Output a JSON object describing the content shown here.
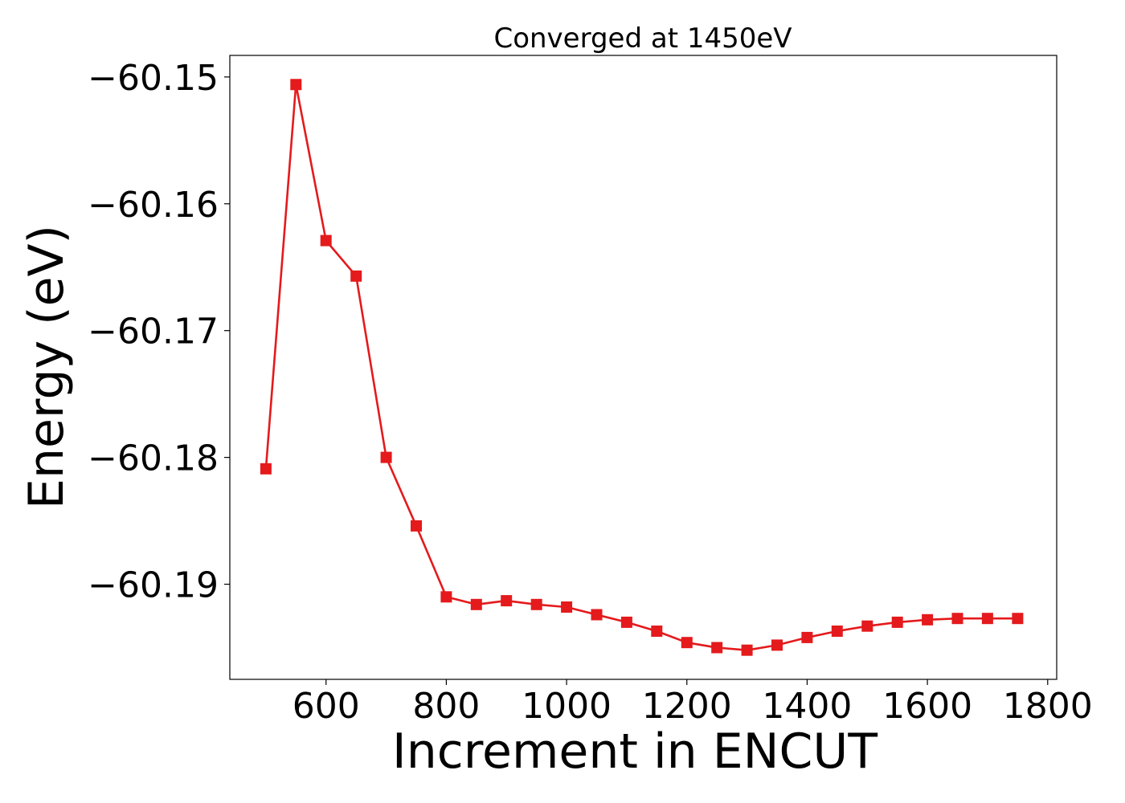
{
  "chart_data": {
    "type": "line",
    "title": "Converged at 1450eV",
    "xlabel": "Increment in ENCUT",
    "ylabel": "Energy (eV)",
    "xlim": [
      440,
      1815
    ],
    "ylim": [
      -60.1975,
      -60.1483
    ],
    "xticks": [
      600,
      800,
      1000,
      1200,
      1400,
      1600,
      1800
    ],
    "yticks": [
      -60.15,
      -60.16,
      -60.17,
      -60.18,
      -60.19
    ],
    "ytick_labels": [
      "−60.15",
      "−60.16",
      "−60.17",
      "−60.18",
      "−60.19"
    ],
    "grid": false,
    "marker": "square",
    "color": "#e41a1c",
    "series": [
      {
        "x": [
          500,
          550,
          600,
          650,
          700,
          750,
          800,
          850,
          900,
          950,
          1000,
          1050,
          1100,
          1150,
          1200,
          1250,
          1300,
          1350,
          1400,
          1450,
          1500,
          1550,
          1600,
          1650,
          1700,
          1750
        ],
        "y": [
          -60.1809,
          -60.1506,
          -60.1629,
          -60.1657,
          -60.18,
          -60.1854,
          -60.191,
          -60.1916,
          -60.1913,
          -60.1916,
          -60.1918,
          -60.1924,
          -60.193,
          -60.1937,
          -60.1946,
          -60.195,
          -60.1952,
          -60.1948,
          -60.1942,
          -60.1937,
          -60.1933,
          -60.193,
          -60.1928,
          -60.1927,
          -60.1927,
          -60.1927
        ]
      }
    ]
  }
}
